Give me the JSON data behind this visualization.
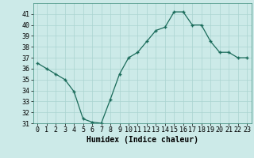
{
  "x": [
    0,
    1,
    2,
    3,
    4,
    5,
    6,
    7,
    8,
    9,
    10,
    11,
    12,
    13,
    14,
    15,
    16,
    17,
    18,
    19,
    20,
    21,
    22,
    23
  ],
  "y": [
    36.5,
    36.0,
    35.5,
    35.0,
    33.9,
    31.4,
    31.1,
    31.0,
    33.2,
    35.5,
    37.0,
    37.5,
    38.5,
    39.5,
    39.8,
    41.2,
    41.2,
    40.0,
    40.0,
    38.5,
    37.5,
    37.5,
    37.0,
    37.0
  ],
  "xlim": [
    -0.5,
    23.5
  ],
  "ylim": [
    31,
    42
  ],
  "yticks": [
    31,
    32,
    33,
    34,
    35,
    36,
    37,
    38,
    39,
    40,
    41
  ],
  "xticks": [
    0,
    1,
    2,
    3,
    4,
    5,
    6,
    7,
    8,
    9,
    10,
    11,
    12,
    13,
    14,
    15,
    16,
    17,
    18,
    19,
    20,
    21,
    22,
    23
  ],
  "xlabel": "Humidex (Indice chaleur)",
  "line_color": "#1a6b5a",
  "marker": "+",
  "marker_size": 3,
  "bg_color": "#cceae8",
  "grid_color": "#aad4d0",
  "label_fontsize": 7,
  "tick_fontsize": 6
}
